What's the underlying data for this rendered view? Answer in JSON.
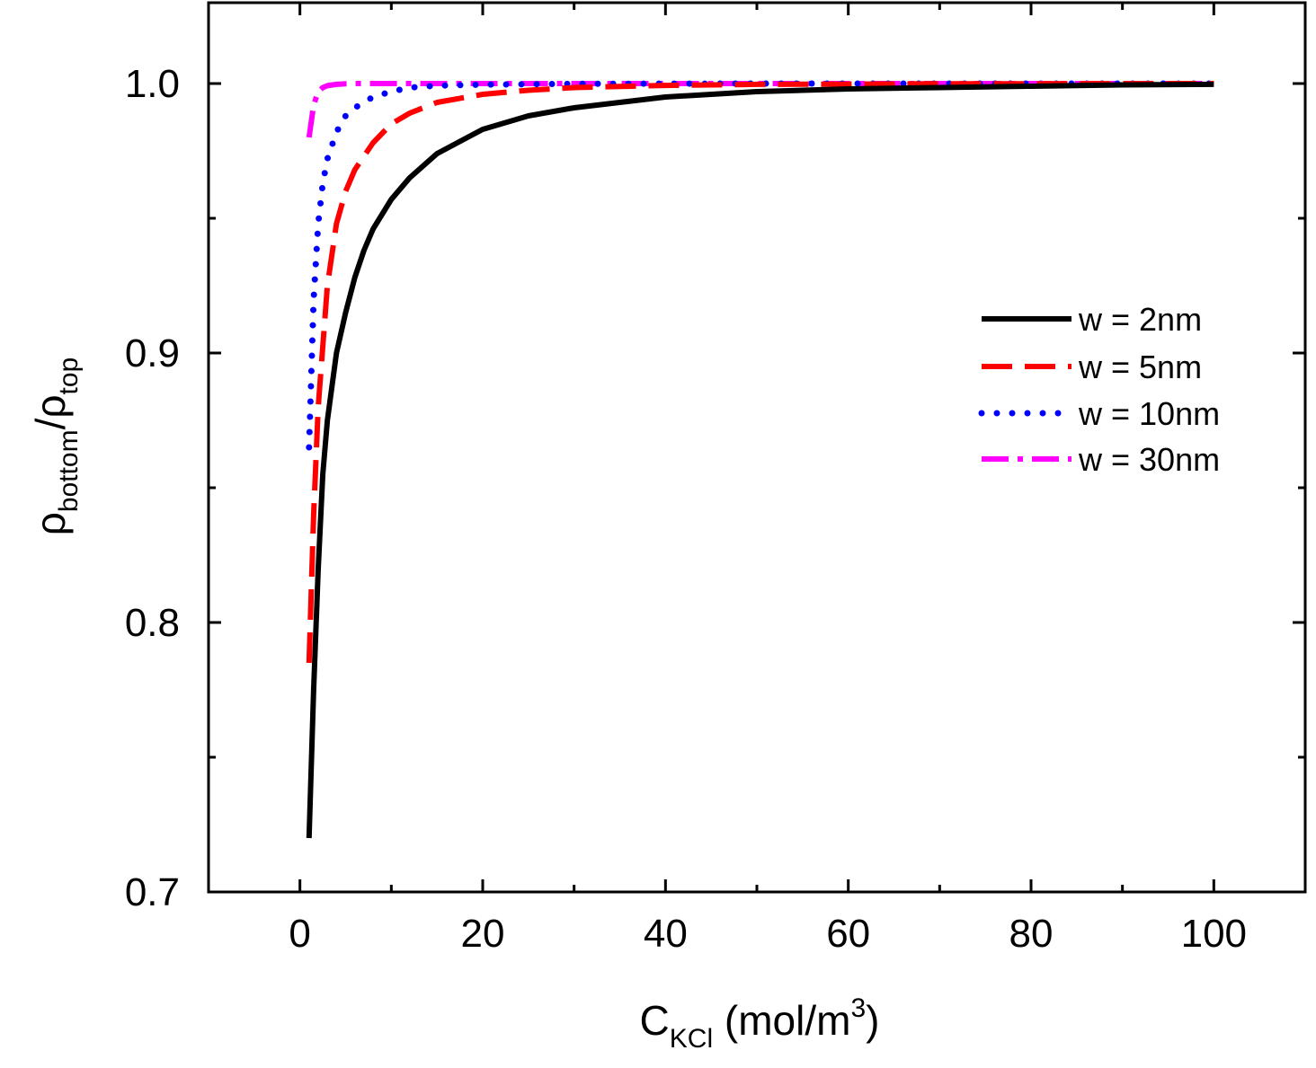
{
  "chart_data": {
    "type": "line",
    "title": "",
    "xlabel": {
      "main": "C",
      "sub": "KCl",
      "rest": " (mol/m",
      "sup": "3",
      "end": ")"
    },
    "ylabel": {
      "part1": "ρ",
      "sub1": "bottom",
      "slash": "/",
      "part2": "ρ",
      "sub2": "top"
    },
    "xlim": [
      -10,
      110
    ],
    "ylim": [
      0.7,
      1.03
    ],
    "xticks": [
      0,
      20,
      40,
      60,
      80,
      100
    ],
    "yticks": [
      0.7,
      0.8,
      0.9,
      1.0
    ],
    "xtick_labels": [
      "0",
      "20",
      "40",
      "60",
      "80",
      "100"
    ],
    "ytick_labels": [
      "0.7",
      "0.8",
      "0.9",
      "1.0"
    ],
    "grid": false,
    "legend_position": "center-right",
    "series": [
      {
        "name": "w = 2nm",
        "color": "#000000",
        "style": "solid",
        "x": [
          1,
          1.5,
          2,
          2.5,
          3,
          4,
          5,
          6,
          7,
          8,
          10,
          12,
          15,
          20,
          25,
          30,
          40,
          50,
          60,
          70,
          80,
          90,
          100
        ],
        "y": [
          0.72,
          0.775,
          0.82,
          0.855,
          0.875,
          0.9,
          0.915,
          0.928,
          0.938,
          0.946,
          0.957,
          0.965,
          0.974,
          0.983,
          0.988,
          0.991,
          0.995,
          0.997,
          0.998,
          0.9985,
          0.999,
          0.9995,
          0.9997
        ]
      },
      {
        "name": "w = 5nm",
        "color": "#ff0000",
        "style": "dashed",
        "x": [
          1,
          1.5,
          2,
          3,
          4,
          5,
          6,
          8,
          10,
          12,
          15,
          20,
          25,
          30,
          40,
          50,
          70,
          100
        ],
        "y": [
          0.785,
          0.84,
          0.88,
          0.925,
          0.948,
          0.96,
          0.968,
          0.978,
          0.985,
          0.989,
          0.993,
          0.996,
          0.9975,
          0.9985,
          0.9993,
          0.9997,
          0.9999,
          1.0
        ]
      },
      {
        "name": "w = 10nm",
        "color": "#0000ff",
        "style": "dotted",
        "x": [
          1,
          1.5,
          2,
          2.5,
          3,
          4,
          5,
          6,
          8,
          10,
          12,
          15,
          20,
          30,
          50,
          100
        ],
        "y": [
          0.865,
          0.92,
          0.948,
          0.963,
          0.972,
          0.982,
          0.988,
          0.991,
          0.995,
          0.997,
          0.9985,
          0.9992,
          0.9996,
          0.9999,
          1.0,
          1.0
        ]
      },
      {
        "name": "w = 30nm",
        "color": "#ff00ff",
        "style": "dashdot",
        "x": [
          1,
          1.5,
          2,
          2.5,
          3,
          4,
          5,
          6,
          10,
          20,
          50,
          100
        ],
        "y": [
          0.98,
          0.992,
          0.997,
          0.9985,
          0.9992,
          0.9997,
          0.9999,
          1.0,
          1.0,
          1.0,
          1.0,
          1.0
        ]
      }
    ]
  }
}
